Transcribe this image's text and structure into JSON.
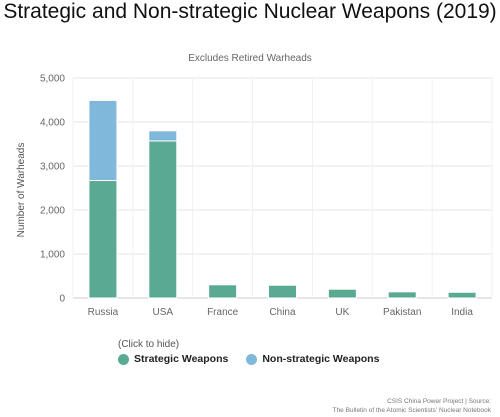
{
  "colors": {
    "strategic": "#5aaa93",
    "non_strategic": "#7fb8da",
    "grid": "#e6e6e6",
    "axis_text": "#666666"
  },
  "legend": {
    "hint": "(Click to hide)",
    "items": [
      {
        "label": "Strategic Weapons",
        "color": "#5aaa93"
      },
      {
        "label": "Non-strategic Weapons",
        "color": "#7fb8da"
      }
    ]
  },
  "source": {
    "line1": "CSIS China Power Project | Source:",
    "line2": "The Bulletin of the Atomic Scientists' Nuclear Notebook"
  },
  "chart_data": {
    "type": "bar",
    "stacked": true,
    "title": "Strategic and Non-strategic Nuclear Weapons (2019)",
    "subtitle": "Excludes Retired Warheads",
    "ylabel": "Number of Warheads",
    "xlabel": "",
    "categories": [
      "Russia",
      "USA",
      "France",
      "China",
      "UK",
      "Pakistan",
      "India"
    ],
    "ylim": [
      0,
      5000
    ],
    "yticks": [
      0,
      1000,
      2000,
      3000,
      4000,
      5000
    ],
    "ytick_labels": [
      "0",
      "1,000",
      "2,000",
      "3,000",
      "4,000",
      "5,000"
    ],
    "grid": true,
    "legend_position": "bottom-left",
    "series": [
      {
        "name": "Strategic Weapons",
        "color": "#5aaa93",
        "values": [
          2670,
          3570,
          300,
          290,
          200,
          140,
          130
        ]
      },
      {
        "name": "Non-strategic Weapons",
        "color": "#7fb8da",
        "values": [
          1820,
          230,
          0,
          0,
          0,
          0,
          0
        ]
      }
    ]
  }
}
